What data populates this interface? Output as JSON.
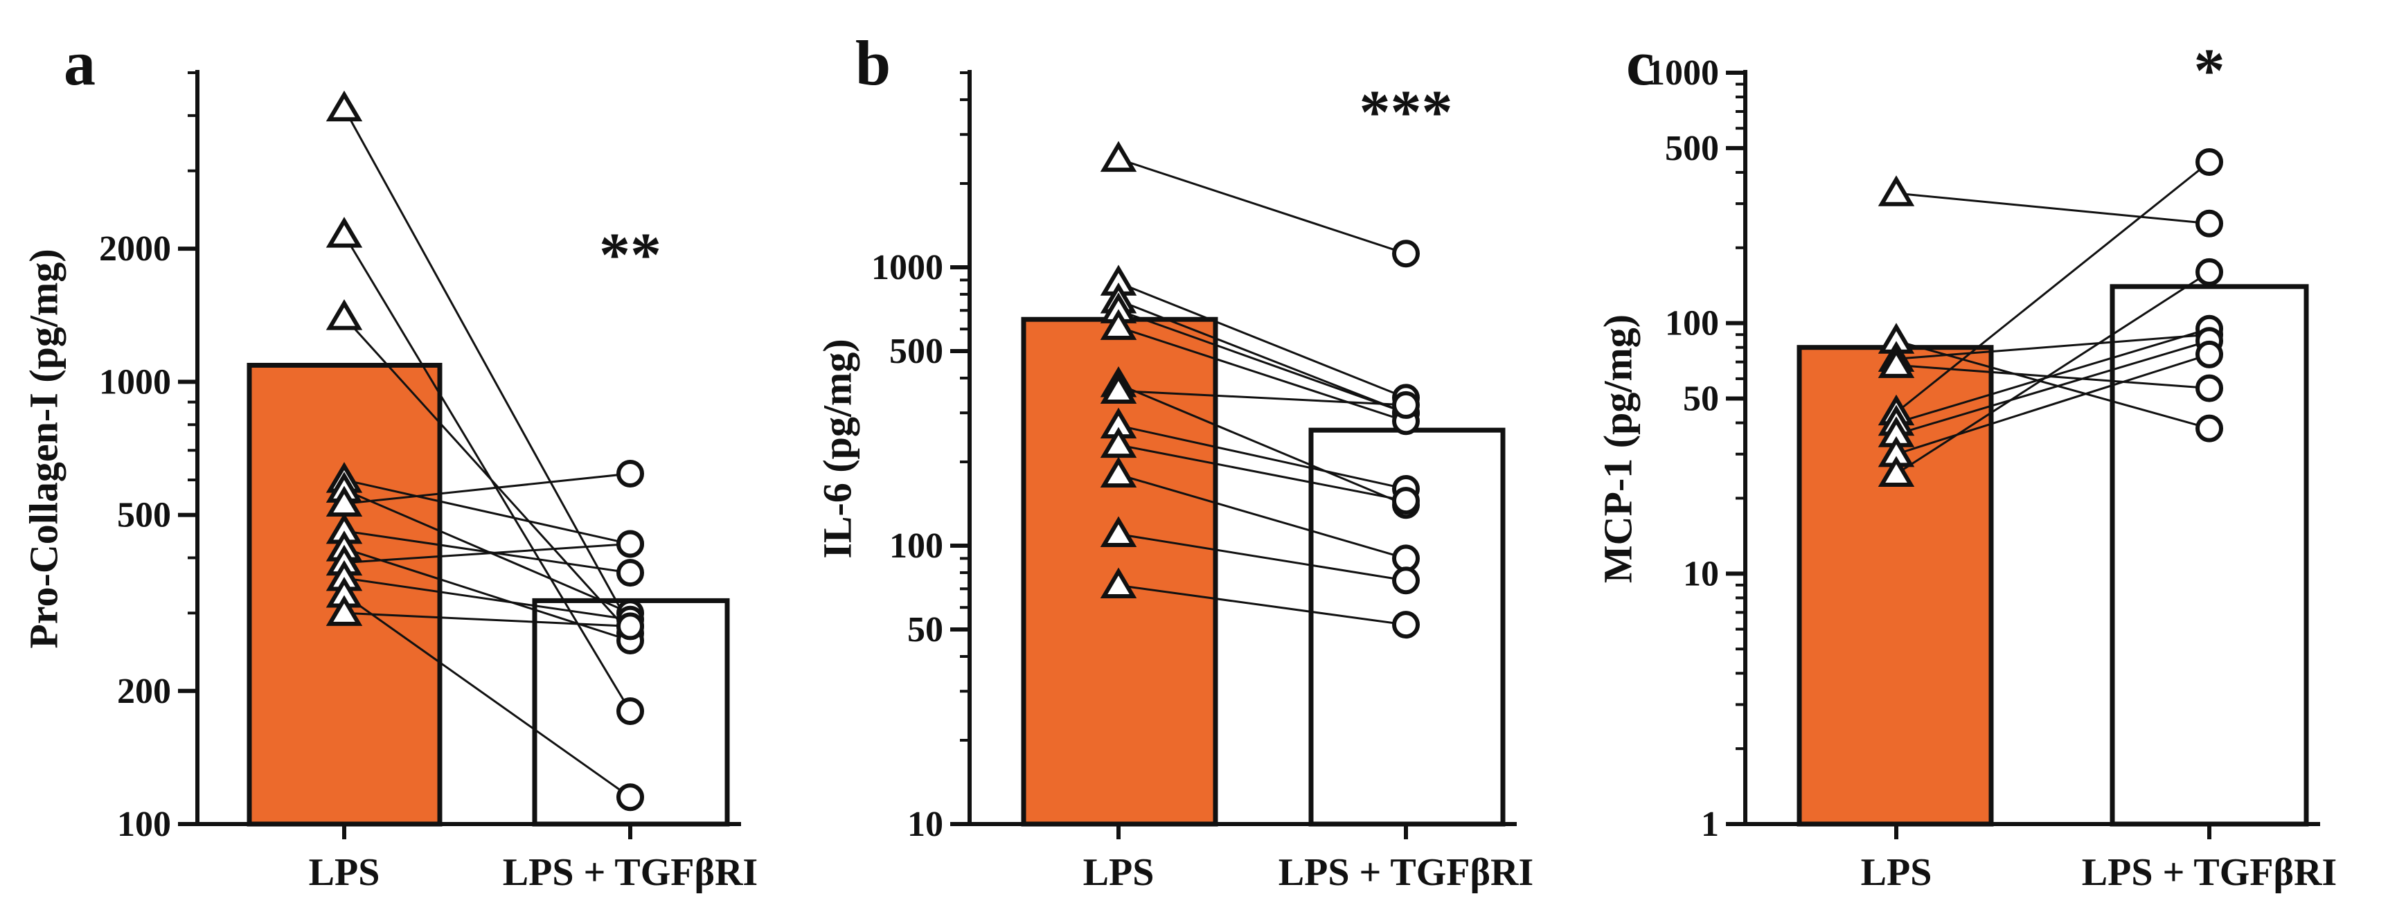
{
  "colors": {
    "lps_bar": "#ec6a2c",
    "treated_bar": "#ffffff",
    "stroke": "#111111"
  },
  "chart_data": [
    {
      "type": "bar",
      "panel": "a",
      "scale": "log",
      "ylabel": "Pro-Collagen-I (pg/mg)",
      "categories": [
        "LPS",
        "LPS + TGFβRI"
      ],
      "ylim": [
        100,
        5000
      ],
      "yticks": [
        100,
        200,
        500,
        1000,
        2000
      ],
      "ytick_labels": [
        "100",
        "200",
        "500",
        "1000",
        "2000"
      ],
      "bar_values": [
        1090,
        320
      ],
      "pairs": [
        [
          4150,
          280
        ],
        [
          2150,
          180
        ],
        [
          1400,
          270
        ],
        [
          600,
          430
        ],
        [
          570,
          300
        ],
        [
          530,
          620
        ],
        [
          460,
          370
        ],
        [
          420,
          260
        ],
        [
          390,
          430
        ],
        [
          360,
          290
        ],
        [
          330,
          115
        ],
        [
          300,
          280
        ]
      ],
      "significance": "**"
    },
    {
      "type": "bar",
      "panel": "b",
      "scale": "log",
      "ylabel": "IL-6 (pg/mg)",
      "categories": [
        "LPS",
        "LPS + TGFβRI"
      ],
      "ylim": [
        10,
        5000
      ],
      "yticks": [
        10,
        50,
        100,
        500,
        1000
      ],
      "ytick_labels": [
        "10",
        "50",
        "100",
        "500",
        "1000"
      ],
      "bar_values": [
        650,
        260
      ],
      "pairs": [
        [
          2450,
          1120
        ],
        [
          880,
          340
        ],
        [
          760,
          300
        ],
        [
          700,
          300
        ],
        [
          610,
          280
        ],
        [
          380,
          140
        ],
        [
          360,
          320
        ],
        [
          270,
          160
        ],
        [
          230,
          145
        ],
        [
          180,
          90
        ],
        [
          110,
          75
        ],
        [
          72,
          52
        ]
      ],
      "significance": "***"
    },
    {
      "type": "bar",
      "panel": "c",
      "scale": "log",
      "ylabel": "MCP-1 (pg/mg)",
      "categories": [
        "LPS",
        "LPS + TGFβRI"
      ],
      "ylim": [
        1,
        1000
      ],
      "yticks": [
        1,
        10,
        50,
        100,
        500,
        1000
      ],
      "ytick_labels": [
        "1",
        "10",
        "50",
        "100",
        "500",
        "1000"
      ],
      "bar_values": [
        80,
        140
      ],
      "pairs": [
        [
          330,
          250
        ],
        [
          85,
          38
        ],
        [
          72,
          90
        ],
        [
          68,
          55
        ],
        [
          44,
          440
        ],
        [
          40,
          95
        ],
        [
          36,
          85
        ],
        [
          30,
          75
        ],
        [
          25,
          160
        ]
      ],
      "significance": "*"
    }
  ]
}
